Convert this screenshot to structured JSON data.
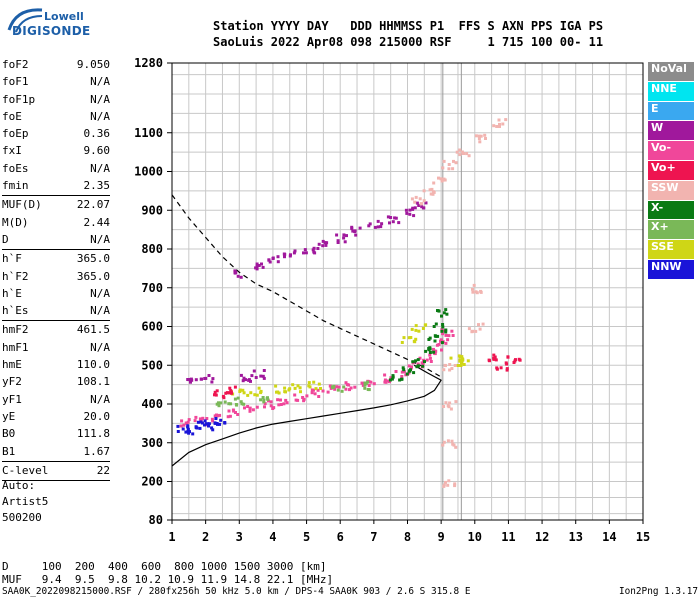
{
  "logo": {
    "line1": "Lowell",
    "line2": "DIGISONDE"
  },
  "header": {
    "line1": "Station YYYY DAY   DDD HHMMSS P1  FFS S AXN PPS IGA PS",
    "line2": "SaoLuis 2022 Apr08 098 215000 RSF     1 715 100 00- 11"
  },
  "params": [
    {
      "k": "foF2",
      "v": "9.050"
    },
    {
      "k": "foF1",
      "v": "N/A"
    },
    {
      "k": "foF1p",
      "v": "N/A"
    },
    {
      "k": "foE",
      "v": "N/A"
    },
    {
      "k": "foEp",
      "v": "0.36"
    },
    {
      "k": "fxI",
      "v": "9.60"
    },
    {
      "k": "foEs",
      "v": "N/A"
    },
    {
      "k": "fmin",
      "v": "2.35"
    },
    {
      "k": "MUF(D)",
      "v": "22.07",
      "sep": true
    },
    {
      "k": "M(D)",
      "v": "2.44"
    },
    {
      "k": "D",
      "v": "N/A"
    },
    {
      "k": "h`F",
      "v": "365.0",
      "sep": true
    },
    {
      "k": "h`F2",
      "v": "365.0"
    },
    {
      "k": "h`E",
      "v": "N/A"
    },
    {
      "k": "h`Es",
      "v": "N/A"
    },
    {
      "k": "hmF2",
      "v": "461.5",
      "sep": true
    },
    {
      "k": "hmF1",
      "v": "N/A"
    },
    {
      "k": "hmE",
      "v": "110.0"
    },
    {
      "k": "yF2",
      "v": "108.1"
    },
    {
      "k": "yF1",
      "v": "N/A"
    },
    {
      "k": "yE",
      "v": "20.0"
    },
    {
      "k": "B0",
      "v": "111.8"
    },
    {
      "k": "B1",
      "v": "1.67"
    },
    {
      "k": "C-level",
      "v": "22",
      "sep": true
    }
  ],
  "auto": {
    "l1": "Auto:",
    "l2": "Artist5",
    "l3": "500200"
  },
  "muf_table": {
    "d_line": "D     100  200  400  600  800 1000 1500 3000 [km]",
    "muf_line": "MUF   9.4  9.5  9.8 10.2 10.9 11.9 14.8 22.1 [MHz]"
  },
  "footer": {
    "left": "SAA0K_2022098215000.RSF / 280fx256h 50 kHz 5.0 km / DPS-4 SAA0K 903 / 2.6 S 315.8 E",
    "right": "Ion2Png 1.3.17"
  },
  "legend": [
    {
      "label": "NoVal",
      "color": "#8c8c8c"
    },
    {
      "label": "NNE",
      "color": "#00e5f0"
    },
    {
      "label": "E",
      "color": "#3aa8f0"
    },
    {
      "label": "W",
      "color": "#a0189c"
    },
    {
      "label": "Vo-",
      "color": "#f0479a"
    },
    {
      "label": "Vo+",
      "color": "#ee1450"
    },
    {
      "label": "SSW",
      "color": "#f2b4b0"
    },
    {
      "label": "X-",
      "color": "#0a7a14"
    },
    {
      "label": "X+",
      "color": "#7ab858"
    },
    {
      "label": "SSE",
      "color": "#cfd616"
    },
    {
      "label": "NNW",
      "color": "#1a14d8"
    }
  ],
  "chart_data": {
    "type": "scatter",
    "xlabel": "",
    "ylabel": "",
    "xlim": [
      1,
      15
    ],
    "xticks": [
      1,
      2,
      3,
      4,
      5,
      6,
      7,
      8,
      9,
      10,
      11,
      12,
      13,
      14,
      15
    ],
    "y_tick_labels": [
      "80",
      "200",
      "300",
      "400",
      "500",
      "600",
      "700",
      "800",
      "900",
      "1000",
      "1100",
      "1280"
    ],
    "ylim": [
      80,
      1280
    ],
    "grid": true,
    "vertical_markers": [
      9.05,
      9.6
    ],
    "series": [
      {
        "color": "#f0479a",
        "points": [
          [
            1.4,
            355
          ],
          [
            1.8,
            360
          ],
          [
            2.3,
            370
          ],
          [
            2.8,
            380
          ],
          [
            3.3,
            392
          ],
          [
            3.8,
            402
          ],
          [
            4.3,
            412
          ],
          [
            4.8,
            420
          ],
          [
            5.3,
            430
          ],
          [
            5.8,
            440
          ],
          [
            6.3,
            450
          ],
          [
            6.8,
            460
          ],
          [
            7.3,
            470
          ],
          [
            7.8,
            485
          ],
          [
            8.2,
            500
          ],
          [
            8.5,
            515
          ],
          [
            8.8,
            535
          ],
          [
            9.0,
            560
          ],
          [
            9.15,
            590
          ]
        ]
      },
      {
        "color": "#0a7a14",
        "points": [
          [
            7.6,
            470
          ],
          [
            8.0,
            490
          ],
          [
            8.3,
            510
          ],
          [
            8.6,
            540
          ],
          [
            8.8,
            570
          ],
          [
            8.95,
            600
          ],
          [
            9.05,
            640
          ]
        ]
      },
      {
        "color": "#a0189c",
        "points": [
          [
            3.0,
            740
          ],
          [
            3.5,
            760
          ],
          [
            4.0,
            775
          ],
          [
            4.5,
            790
          ],
          [
            5.0,
            800
          ],
          [
            5.5,
            815
          ],
          [
            6.0,
            830
          ],
          [
            6.5,
            850
          ],
          [
            7.0,
            865
          ],
          [
            7.5,
            880
          ],
          [
            8.0,
            900
          ],
          [
            8.3,
            915
          ],
          [
            1.6,
            460
          ],
          [
            2.0,
            470
          ],
          [
            3.2,
            470
          ],
          [
            3.5,
            480
          ]
        ]
      },
      {
        "color": "#1a14d8",
        "points": [
          [
            1.3,
            340
          ],
          [
            1.6,
            335
          ],
          [
            1.9,
            350
          ],
          [
            2.1,
            345
          ],
          [
            2.4,
            360
          ]
        ]
      },
      {
        "color": "#f2b4b0",
        "points": [
          [
            8.3,
            930
          ],
          [
            8.6,
            950
          ],
          [
            8.9,
            980
          ],
          [
            9.2,
            1020
          ],
          [
            9.6,
            1050
          ],
          [
            10.2,
            1090
          ],
          [
            10.7,
            1130
          ],
          [
            9.2,
            500
          ],
          [
            9.2,
            400
          ],
          [
            9.2,
            300
          ],
          [
            9.2,
            200
          ],
          [
            10.0,
            700
          ],
          [
            10.0,
            600
          ]
        ]
      },
      {
        "color": "#cfd616",
        "points": [
          [
            2.9,
            430
          ],
          [
            3.4,
            435
          ],
          [
            4.2,
            440
          ],
          [
            4.6,
            445
          ],
          [
            5.2,
            450
          ],
          [
            8.3,
            600
          ],
          [
            8.0,
            570
          ],
          [
            9.4,
            520
          ],
          [
            9.6,
            510
          ]
        ]
      },
      {
        "color": "#7ab858",
        "points": [
          [
            2.5,
            400
          ],
          [
            3.0,
            410
          ],
          [
            3.6,
            415
          ],
          [
            5.9,
            440
          ],
          [
            6.7,
            450
          ]
        ]
      },
      {
        "color": "#ee1450",
        "points": [
          [
            10.4,
            520
          ],
          [
            10.8,
            500
          ],
          [
            11.1,
            520
          ],
          [
            2.4,
            430
          ],
          [
            2.8,
            440
          ]
        ]
      }
    ],
    "curves": [
      {
        "style": "dashed",
        "points": [
          [
            1.0,
            940
          ],
          [
            1.5,
            880
          ],
          [
            2.0,
            830
          ],
          [
            2.5,
            780
          ],
          [
            3.0,
            740
          ],
          [
            3.5,
            710
          ],
          [
            4.0,
            690
          ],
          [
            4.5,
            665
          ],
          [
            5.0,
            640
          ],
          [
            5.5,
            615
          ],
          [
            6.0,
            595
          ],
          [
            6.5,
            575
          ],
          [
            7.0,
            555
          ],
          [
            7.5,
            535
          ],
          [
            8.0,
            515
          ],
          [
            8.5,
            495
          ],
          [
            9.0,
            470
          ]
        ]
      },
      {
        "style": "solid",
        "points": [
          [
            1.0,
            240
          ],
          [
            1.5,
            275
          ],
          [
            2.0,
            295
          ],
          [
            2.5,
            310
          ],
          [
            3.0,
            325
          ],
          [
            3.5,
            338
          ],
          [
            4.0,
            348
          ],
          [
            4.5,
            355
          ],
          [
            5.0,
            362
          ],
          [
            5.5,
            369
          ],
          [
            6.0,
            376
          ],
          [
            6.5,
            383
          ],
          [
            7.0,
            390
          ],
          [
            7.5,
            398
          ],
          [
            8.0,
            408
          ],
          [
            8.5,
            420
          ],
          [
            8.8,
            435
          ],
          [
            9.0,
            461.5
          ],
          [
            8.6,
            480
          ],
          [
            8.2,
            500
          ]
        ]
      }
    ]
  }
}
